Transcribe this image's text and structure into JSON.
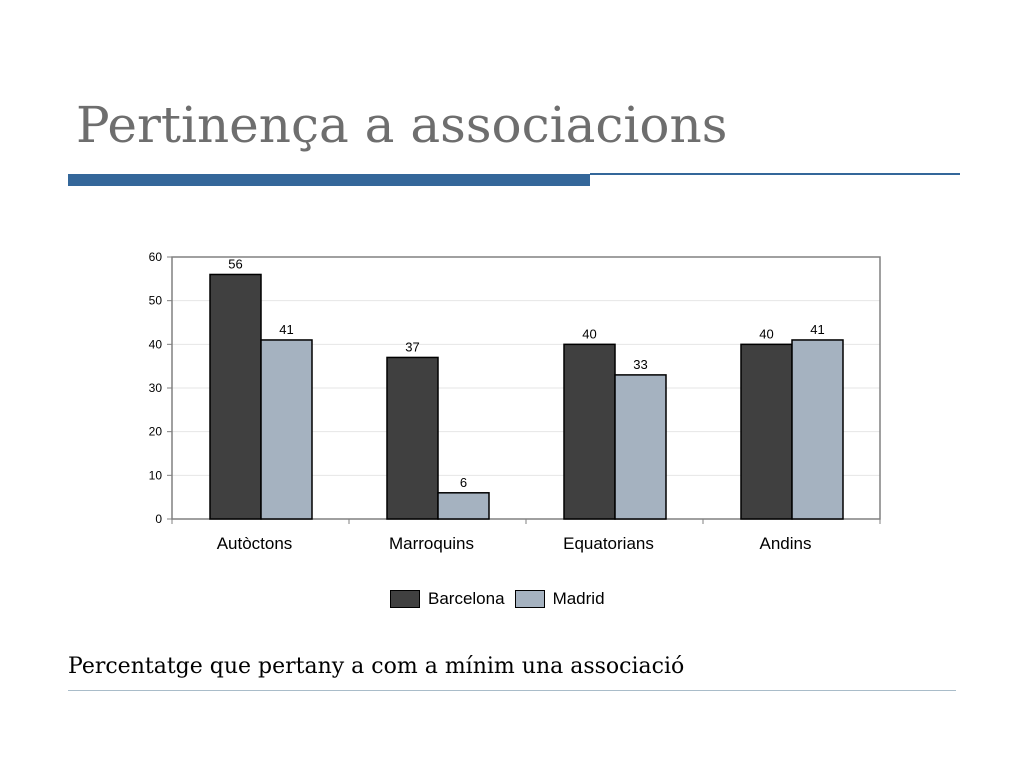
{
  "title": "Pertinença a associacions",
  "subtitle": "Percentatge que pertany a com a mínim una associació",
  "colors": {
    "title": "#6e6e6e",
    "rule": "#34679a",
    "barcelona": "#404040",
    "madrid": "#a5b2c0"
  },
  "chart_data": {
    "type": "bar",
    "categories": [
      "Autòctons",
      "Marroquins",
      "Equatorians",
      "Andins"
    ],
    "series": [
      {
        "name": "Barcelona",
        "values": [
          56,
          37,
          40,
          40
        ],
        "color": "#404040"
      },
      {
        "name": "Madrid",
        "values": [
          41,
          6,
          33,
          41
        ],
        "color": "#a5b2c0"
      }
    ],
    "data_labels": {
      "Barcelona": [
        "56",
        "37",
        "40",
        "40"
      ],
      "Madrid": [
        "41",
        "6",
        "33",
        "41"
      ]
    },
    "yticks": [
      "0",
      "10",
      "20",
      "30",
      "40",
      "50",
      "60"
    ],
    "ylim": [
      0,
      60
    ],
    "grid": true,
    "legend_position": "bottom",
    "title": "",
    "xlabel": "",
    "ylabel": ""
  }
}
